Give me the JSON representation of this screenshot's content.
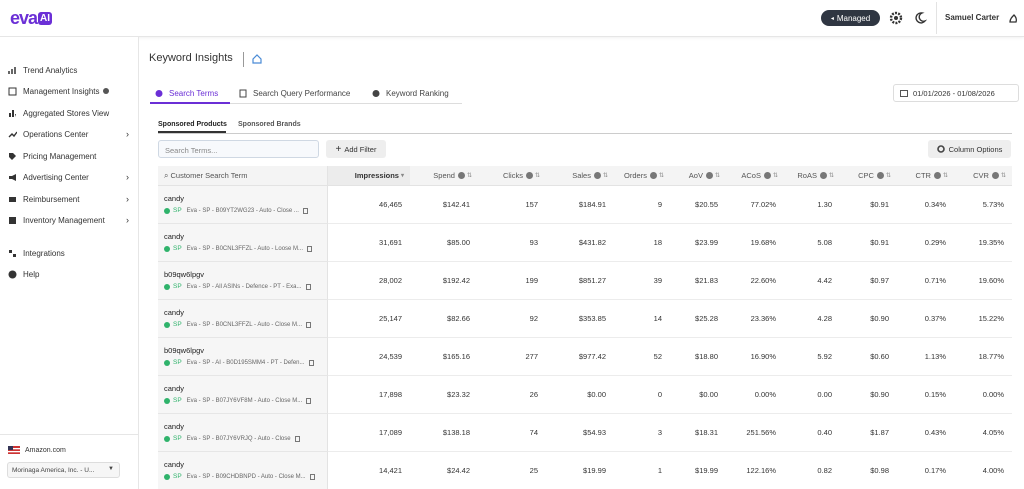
{
  "header": {
    "logo": "eva",
    "logo_badge": "AI",
    "mode": "Managed",
    "user": "Samuel Carter"
  },
  "sidebar": {
    "nav": [
      "Trend Analytics",
      "Management Insights",
      "Aggregated Stores View",
      "Operations Center",
      "Pricing Management",
      "Advertising Center",
      "Reimbursement",
      "Inventory Management",
      "Integrations",
      "Help"
    ],
    "marketplace": "Amazon.com",
    "account": "Morinaga America, Inc. - U..."
  },
  "page": {
    "title": "Keyword Insights",
    "tabs": [
      "Search Terms",
      "Search Query Performance",
      "Keyword Ranking"
    ],
    "date_range": "01/01/2026 - 01/08/2026",
    "subtabs": [
      "Sponsored Products",
      "Sponsored Brands"
    ],
    "search_placeholder": "Search Terms...",
    "add_filter": "Add Filter",
    "column_options": "Column Options"
  },
  "table": {
    "columns": [
      "Customer Search Term",
      "Impressions",
      "Spend",
      "Clicks",
      "Sales",
      "Orders",
      "AoV",
      "ACoS",
      "RoAS",
      "CPC",
      "CTR",
      "CVR"
    ],
    "rows": [
      {
        "term": "candy",
        "badge": "SP",
        "campaign": "Eva - SP - B09YT2WG23 - Auto - Close ...",
        "cells": [
          "46,465",
          "$142.41",
          "157",
          "$184.91",
          "9",
          "$20.55",
          "77.02%",
          "1.30",
          "$0.91",
          "0.34%",
          "5.73%"
        ]
      },
      {
        "term": "candy",
        "badge": "SP",
        "campaign": "Eva - SP - B0CNL3FFZL - Auto - Loose M...",
        "cells": [
          "31,691",
          "$85.00",
          "93",
          "$431.82",
          "18",
          "$23.99",
          "19.68%",
          "5.08",
          "$0.91",
          "0.29%",
          "19.35%"
        ]
      },
      {
        "term": "b09qw6lpgv",
        "badge": "SP",
        "campaign": "Eva - SP - All ASINs - Defence - PT - Exa...",
        "cells": [
          "28,002",
          "$192.42",
          "199",
          "$851.27",
          "39",
          "$21.83",
          "22.60%",
          "4.42",
          "$0.97",
          "0.71%",
          "19.60%"
        ]
      },
      {
        "term": "candy",
        "badge": "SP",
        "campaign": "Eva - SP - B0CNL3FFZL - Auto - Close M...",
        "cells": [
          "25,147",
          "$82.66",
          "92",
          "$353.85",
          "14",
          "$25.28",
          "23.36%",
          "4.28",
          "$0.90",
          "0.37%",
          "15.22%"
        ]
      },
      {
        "term": "b09qw6lpgv",
        "badge": "SP",
        "campaign": "Eva - SP - AI - B0D195SMM4 - PT - Defen...",
        "cells": [
          "24,539",
          "$165.16",
          "277",
          "$977.42",
          "52",
          "$18.80",
          "16.90%",
          "5.92",
          "$0.60",
          "1.13%",
          "18.77%"
        ]
      },
      {
        "term": "candy",
        "badge": "SP",
        "campaign": "Eva - SP - B07JY6VF8M - Auto - Close M...",
        "cells": [
          "17,898",
          "$23.32",
          "26",
          "$0.00",
          "0",
          "$0.00",
          "0.00%",
          "0.00",
          "$0.90",
          "0.15%",
          "0.00%"
        ]
      },
      {
        "term": "candy",
        "badge": "SP",
        "campaign": "Eva - SP - B07JY6VRJQ - Auto - Close",
        "cells": [
          "17,089",
          "$138.18",
          "74",
          "$54.93",
          "3",
          "$18.31",
          "251.56%",
          "0.40",
          "$1.87",
          "0.43%",
          "4.05%"
        ]
      },
      {
        "term": "candy",
        "badge": "SP",
        "campaign": "Eva - SP - B09CHDBNPD - Auto - Close M...",
        "cells": [
          "14,421",
          "$24.42",
          "25",
          "$19.99",
          "1",
          "$19.99",
          "122.16%",
          "0.82",
          "$0.98",
          "0.17%",
          "4.00%"
        ]
      }
    ]
  }
}
